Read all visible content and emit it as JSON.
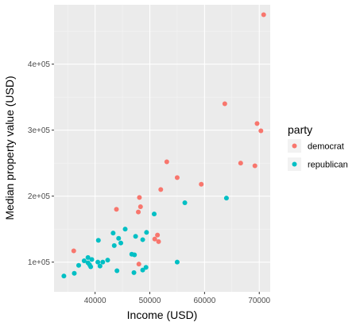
{
  "chart_data": {
    "type": "scatter",
    "xlabel": "Income (USD)",
    "ylabel": "Median property value (USD)",
    "xlim": [
      32500,
      72000
    ],
    "ylim": [
      55000,
      490000
    ],
    "x_ticks": [
      40000,
      50000,
      60000,
      70000
    ],
    "x_tick_labels": [
      "40000",
      "50000",
      "60000",
      "70000"
    ],
    "y_ticks": [
      100000,
      200000,
      300000,
      400000
    ],
    "y_tick_labels": [
      "1e+05",
      "2e+05",
      "3e+05",
      "4e+05"
    ],
    "grid": true,
    "legend": {
      "title": "party",
      "placement": "right",
      "entries": [
        {
          "label": "democrat",
          "color": "#F8766D"
        },
        {
          "label": "republican",
          "color": "#00BFC4"
        }
      ]
    },
    "series": [
      {
        "name": "democrat",
        "color": "#F8766D",
        "points": [
          [
            70800,
            475000
          ],
          [
            63700,
            340000
          ],
          [
            69600,
            310000
          ],
          [
            70300,
            299000
          ],
          [
            66600,
            250000
          ],
          [
            69200,
            246000
          ],
          [
            53100,
            252000
          ],
          [
            55000,
            228000
          ],
          [
            59400,
            218000
          ],
          [
            52000,
            210000
          ],
          [
            48100,
            198000
          ],
          [
            48300,
            184000
          ],
          [
            47900,
            176000
          ],
          [
            43900,
            180000
          ],
          [
            51400,
            141000
          ],
          [
            50900,
            135000
          ],
          [
            51600,
            131000
          ],
          [
            36100,
            117000
          ],
          [
            48000,
            97000
          ]
        ]
      },
      {
        "name": "republican",
        "color": "#00BFC4",
        "points": [
          [
            64000,
            197000
          ],
          [
            56400,
            190000
          ],
          [
            50800,
            173000
          ],
          [
            49400,
            145000
          ],
          [
            45500,
            150000
          ],
          [
            47400,
            139000
          ],
          [
            43300,
            144000
          ],
          [
            44300,
            136000
          ],
          [
            40600,
            133000
          ],
          [
            44700,
            129000
          ],
          [
            43500,
            125000
          ],
          [
            48700,
            134000
          ],
          [
            38700,
            107000
          ],
          [
            38000,
            102000
          ],
          [
            39400,
            104000
          ],
          [
            40500,
            100000
          ],
          [
            41400,
            100000
          ],
          [
            42300,
            103000
          ],
          [
            46700,
            112000
          ],
          [
            47200,
            111000
          ],
          [
            37000,
            95000
          ],
          [
            38700,
            99000
          ],
          [
            39000,
            96000
          ],
          [
            40900,
            94000
          ],
          [
            39200,
            93000
          ],
          [
            36200,
            83000
          ],
          [
            34300,
            79000
          ],
          [
            44000,
            87000
          ],
          [
            48700,
            88000
          ],
          [
            49300,
            92000
          ],
          [
            47100,
            84000
          ],
          [
            55000,
            100000
          ]
        ]
      }
    ]
  }
}
